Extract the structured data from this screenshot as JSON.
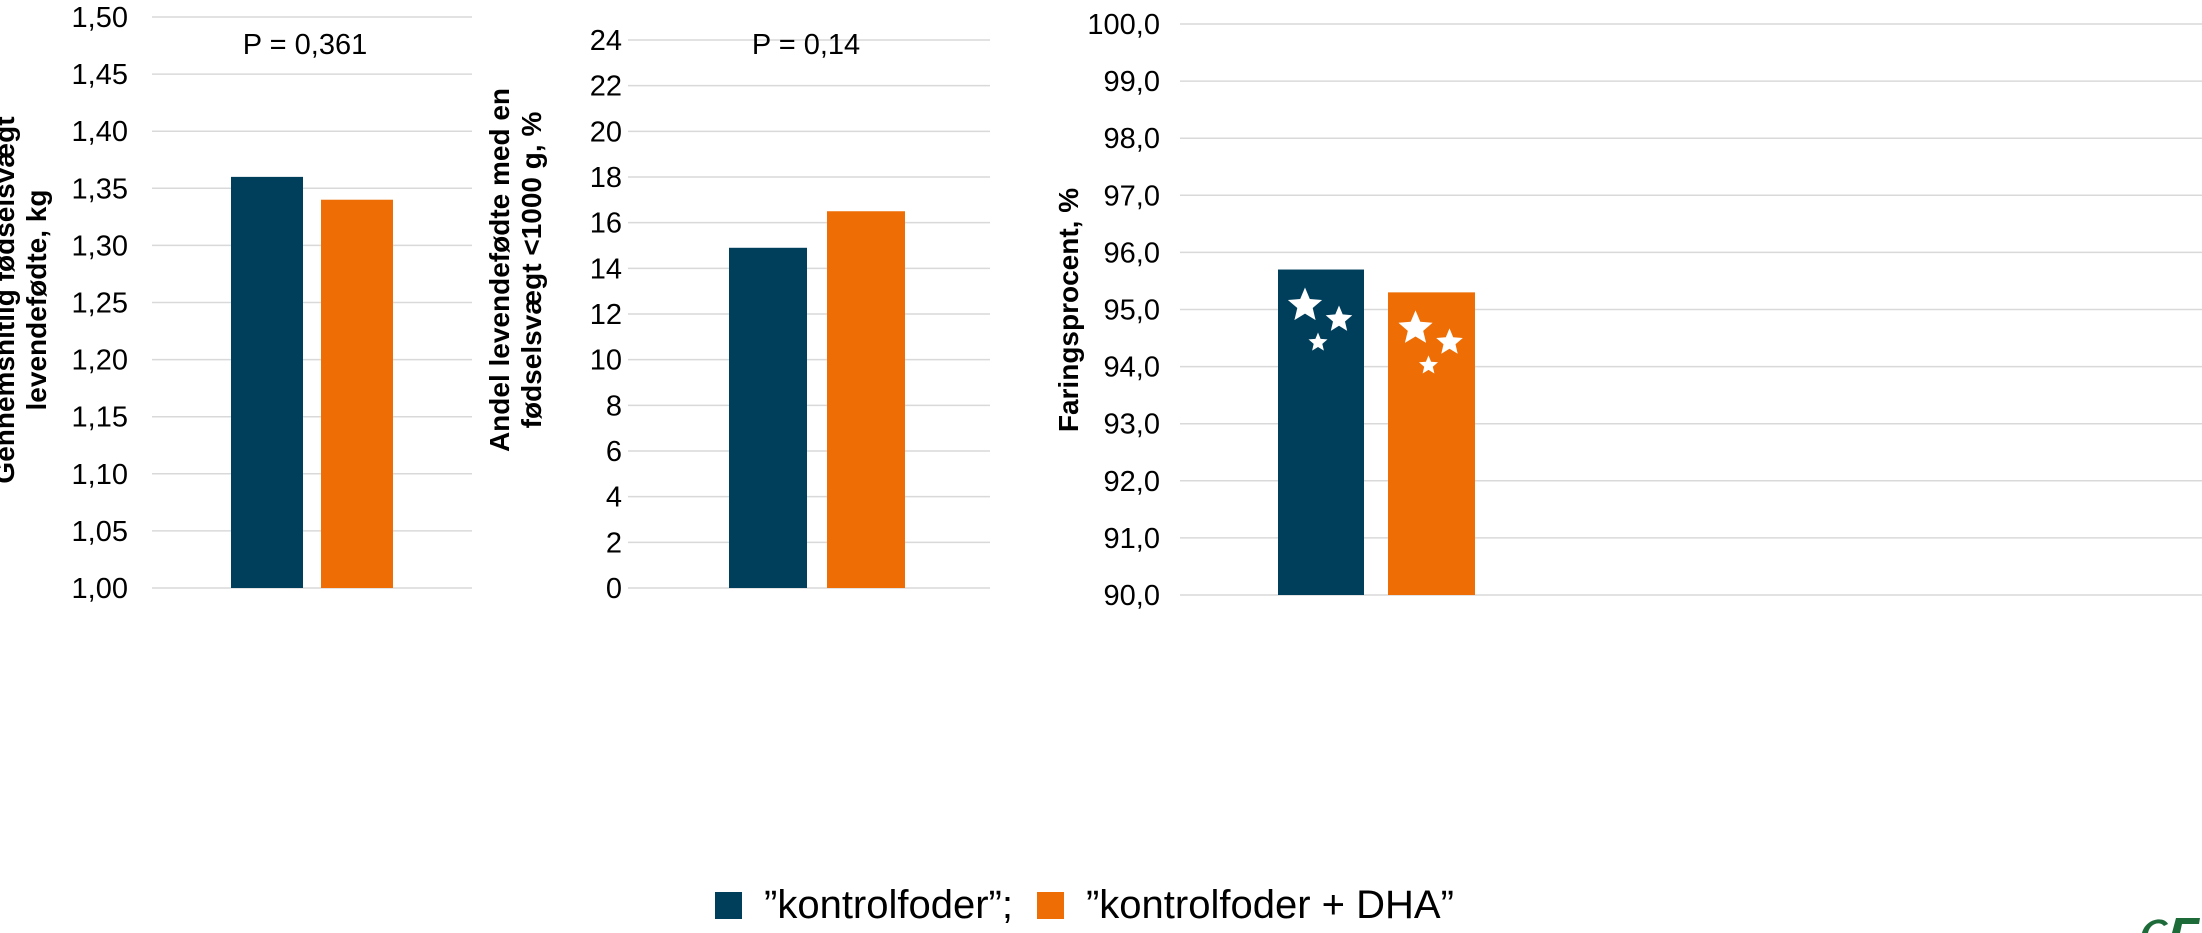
{
  "colors": {
    "series_1": "#003F5C",
    "series_2": "#EE6D04",
    "grid": "#D9D9D9",
    "text": "#000000",
    "logo": "#1E6B3A"
  },
  "legend": {
    "items": [
      {
        "label": "”kontrolfoder”;",
        "color": "#003F5C"
      },
      {
        "label": "”kontrolfoder + DHA”",
        "color": "#EE6D04"
      }
    ]
  },
  "chart_data": [
    {
      "type": "bar",
      "ylabel_lines": [
        "Gennemsnitlig fødselsvægt",
        "levendefødte, kg"
      ],
      "annotation": "P = 0,361",
      "ylim": [
        1.0,
        1.5
      ],
      "yticks": [
        "1,00",
        "1,05",
        "1,10",
        "1,15",
        "1,20",
        "1,25",
        "1,30",
        "1,35",
        "1,40",
        "1,45",
        "1,50"
      ],
      "grid": true,
      "series": [
        {
          "name": "”kontrolfoder”",
          "values": [
            1.36
          ]
        },
        {
          "name": "”kontrolfoder + DHA”",
          "values": [
            1.34
          ]
        }
      ]
    },
    {
      "type": "bar",
      "ylabel_lines": [
        "Andel levendefødte med en",
        "fødselsvægt <1000 g, %"
      ],
      "annotation": "P = 0,14",
      "ylim": [
        0,
        24
      ],
      "yticks": [
        "0",
        "2",
        "4",
        "6",
        "8",
        "10",
        "12",
        "14",
        "16",
        "18",
        "20",
        "22",
        "24"
      ],
      "grid": true,
      "series": [
        {
          "name": "”kontrolfoder”",
          "values": [
            14.9
          ]
        },
        {
          "name": "”kontrolfoder + DHA”",
          "values": [
            16.5
          ]
        }
      ]
    },
    {
      "type": "bar",
      "ylabel_lines": [
        "Faringsprocent, %"
      ],
      "annotation": "",
      "ylim": [
        90,
        100
      ],
      "yticks": [
        "90,0",
        "91,0",
        "92,0",
        "93,0",
        "94,0",
        "95,0",
        "96,0",
        "97,0",
        "98,0",
        "99,0",
        "100,0"
      ],
      "grid": true,
      "bar_icon": "star-icon",
      "series": [
        {
          "name": "”kontrolfoder”",
          "values": [
            95.7
          ]
        },
        {
          "name": "”kontrolfoder + DHA”",
          "values": [
            95.3
          ]
        }
      ]
    }
  ]
}
